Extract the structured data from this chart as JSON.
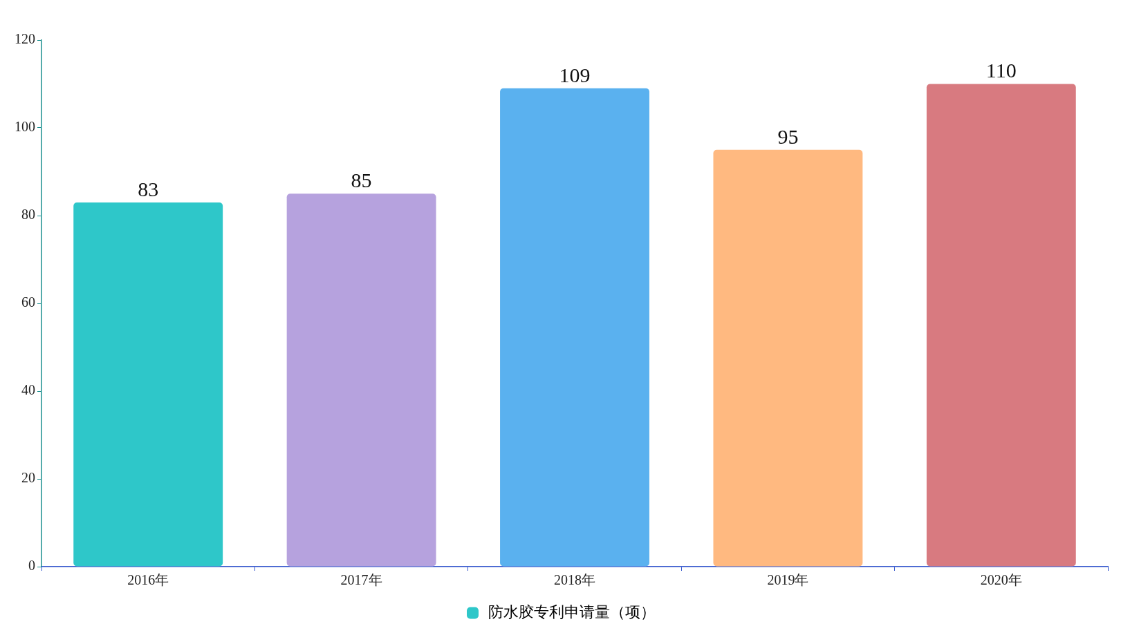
{
  "chart_data": {
    "type": "bar",
    "categories": [
      "2016年",
      "2017年",
      "2018年",
      "2019年",
      "2020年"
    ],
    "series": [
      {
        "name": "防水胶专利申请量（项）",
        "values": [
          83,
          85,
          109,
          95,
          110
        ],
        "colors": [
          "#2ec7c9",
          "#b6a2de",
          "#5ab1ef",
          "#ffb980",
          "#d87a80"
        ]
      }
    ],
    "ylim": [
      0,
      120
    ],
    "yticks": [
      0,
      20,
      40,
      60,
      80,
      100,
      120
    ],
    "data_labels": true,
    "legend": "bottom",
    "grid": false
  }
}
